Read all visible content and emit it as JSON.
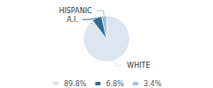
{
  "chart_data": {
    "type": "pie",
    "categories": [
      "WHITE",
      "A.I.",
      "HISPANIC"
    ],
    "values": [
      89.8,
      6.8,
      3.4
    ],
    "value_labels": [
      "89.8%",
      "6.8%",
      "3.4%"
    ],
    "colors": [
      "#dce6f1",
      "#336b8f",
      "#a8bfcc"
    ],
    "legend": "bottom"
  }
}
